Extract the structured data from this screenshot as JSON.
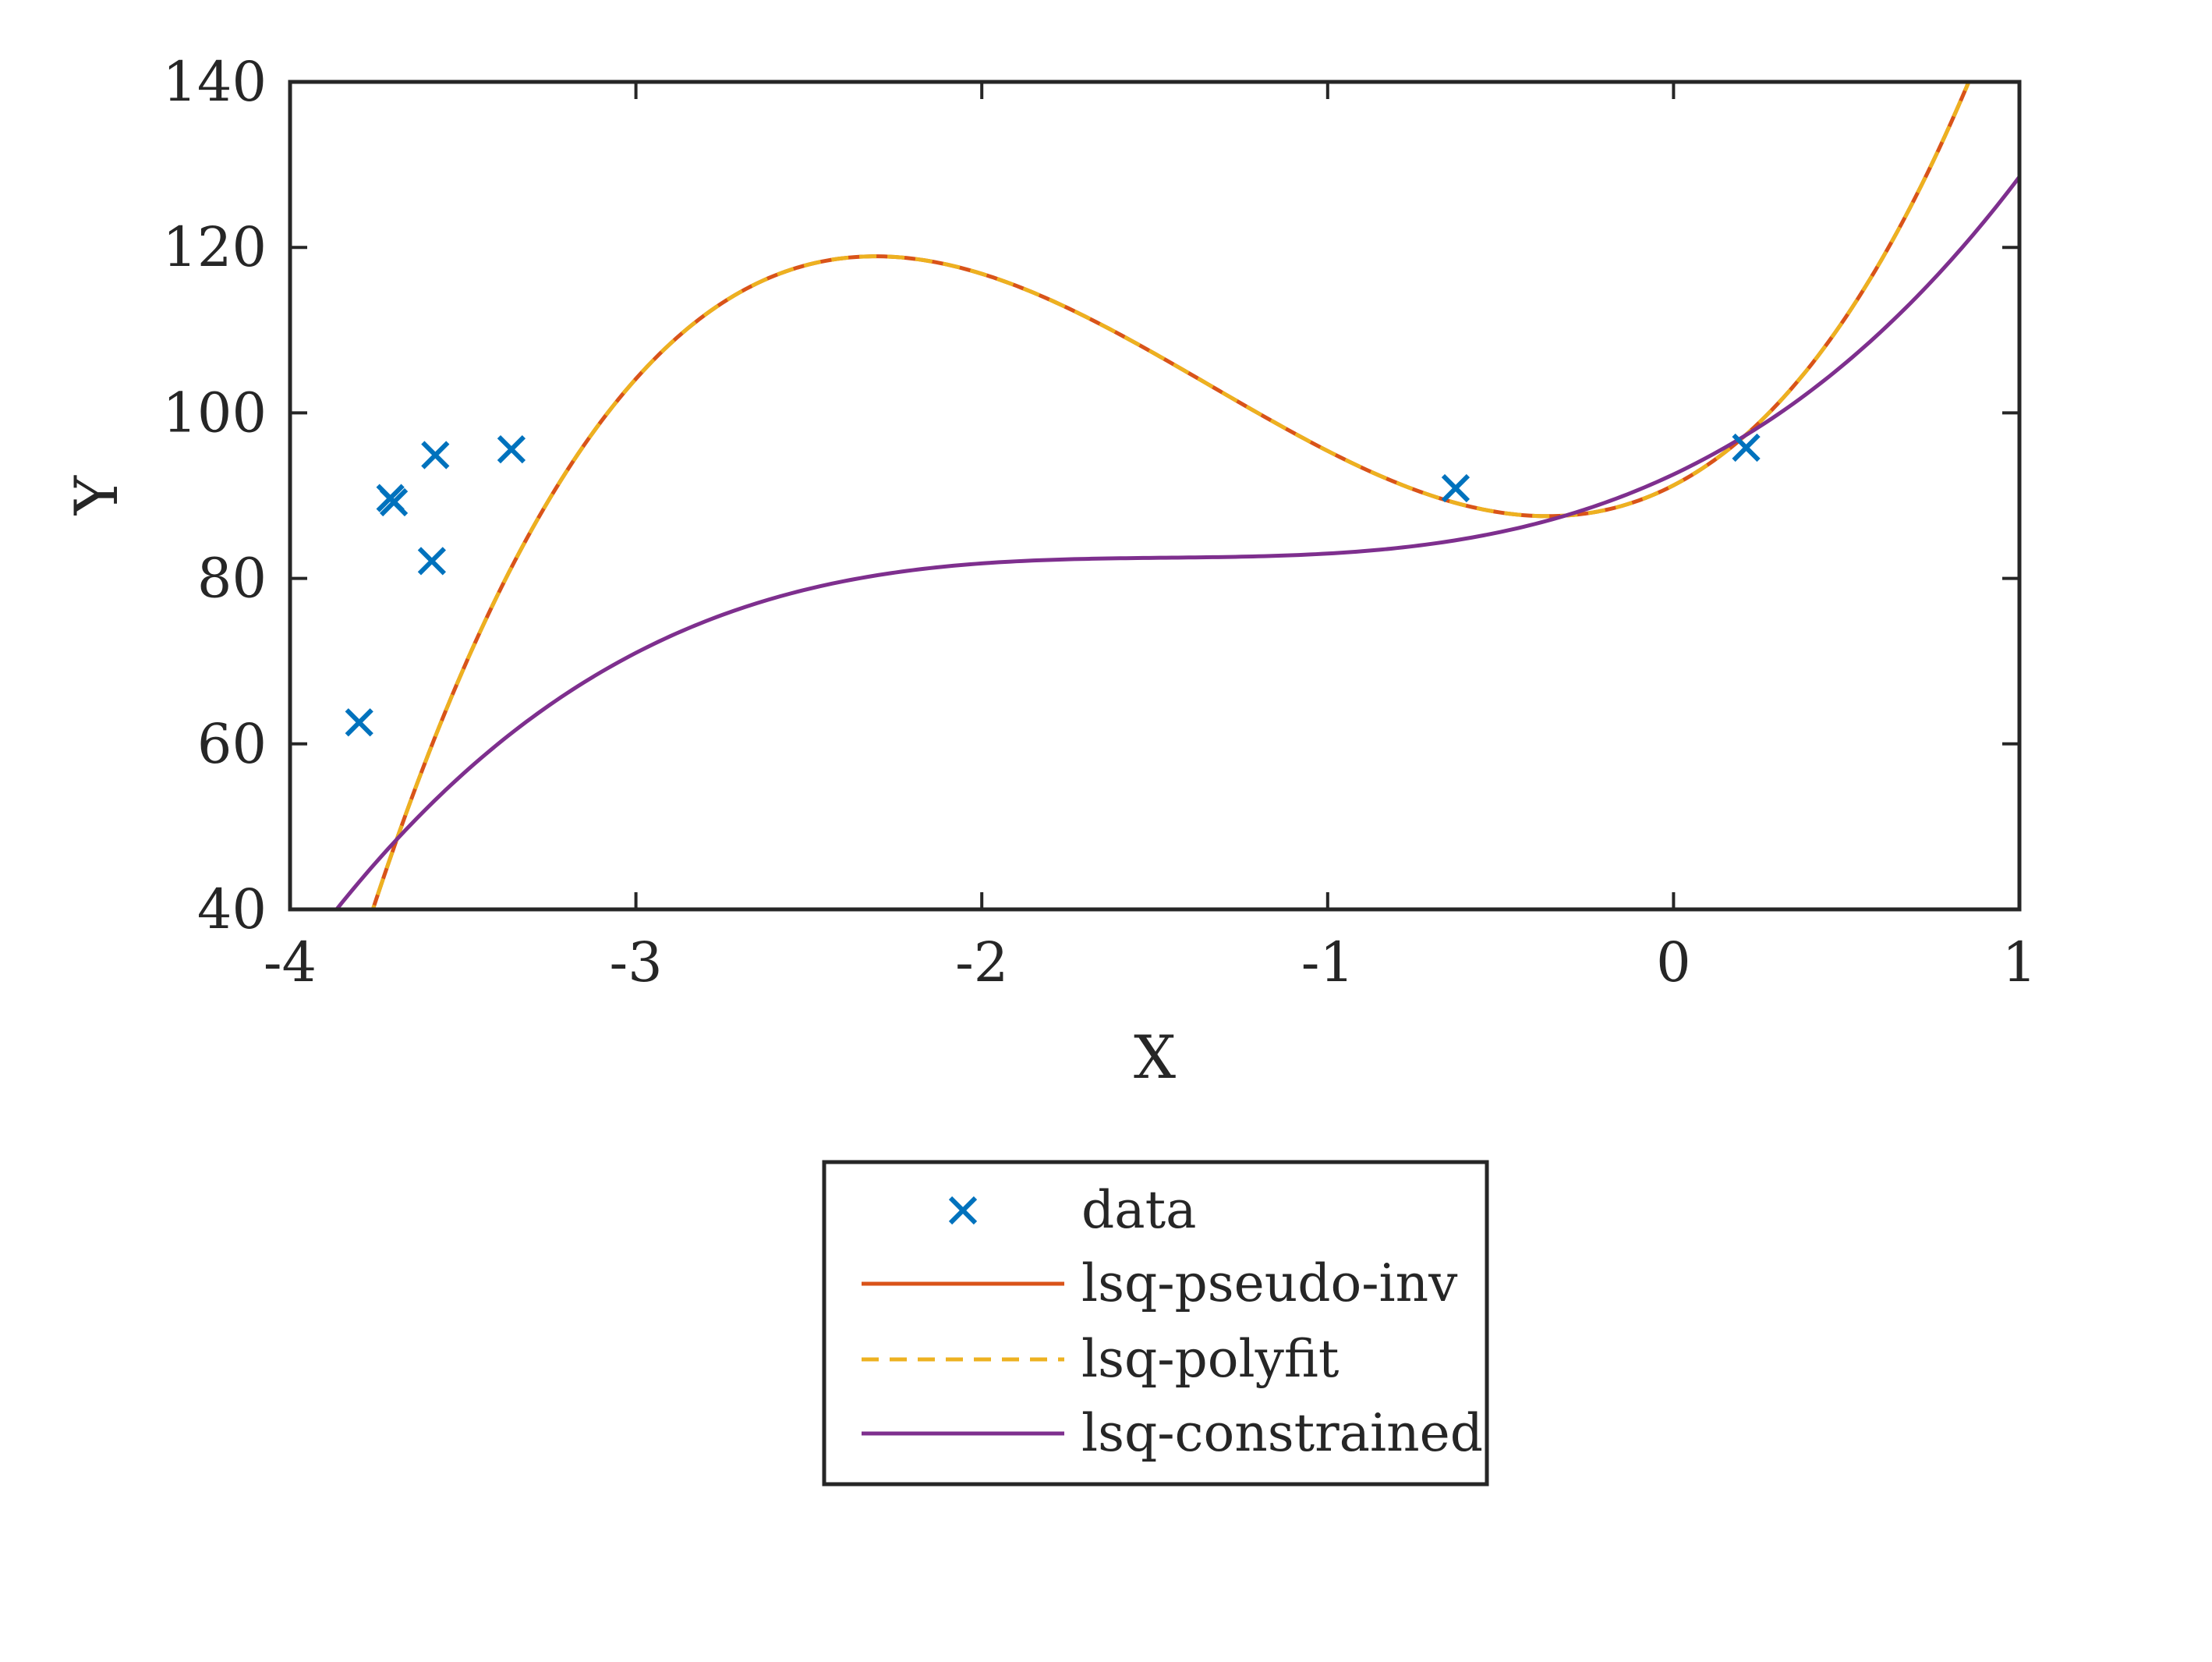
{
  "chart_data": {
    "type": "line",
    "xlabel": "X",
    "ylabel": "Y",
    "xlim": [
      -4,
      1
    ],
    "ylim": [
      40,
      140
    ],
    "xticks": [
      -4,
      -3,
      -2,
      -1,
      0,
      1
    ],
    "yticks": [
      40,
      60,
      80,
      100,
      120,
      140
    ],
    "xtick_labels": [
      "-4",
      "-3",
      "-2",
      "-1",
      "0",
      "1"
    ],
    "ytick_labels": [
      "40",
      "60",
      "80",
      "100",
      "120",
      "140"
    ],
    "grid": false,
    "box": true,
    "legend_position": "below plot, centered",
    "series": [
      {
        "name": "data",
        "kind": "scatter",
        "marker": "x",
        "color": "#0072BD",
        "points": [
          [
            -3.8,
            62.6
          ],
          [
            -3.71,
            89.7
          ],
          [
            -3.7,
            89.2
          ],
          [
            -3.59,
            82.1
          ],
          [
            -3.58,
            94.9
          ],
          [
            -3.36,
            95.6
          ],
          [
            -0.63,
            90.9
          ],
          [
            0.21,
            95.8
          ]
        ]
      },
      {
        "name": "lsq-pseudo-inv",
        "kind": "line",
        "style": "solid",
        "color": "#D95319",
        "coefficients_desc": [
          8.56,
          34.31,
          21.6,
          91.25
        ]
      },
      {
        "name": "lsq-polyfit",
        "kind": "line",
        "style": "dashed",
        "color": "#EDB120",
        "coefficients_desc": [
          8.56,
          34.31,
          21.6,
          91.25
        ]
      },
      {
        "name": "lsq-constrained",
        "kind": "line",
        "style": "solid",
        "color": "#7E2F8E",
        "coefficients_desc": [
          3.0,
          13.19,
          19.76,
          92.57
        ]
      }
    ]
  }
}
